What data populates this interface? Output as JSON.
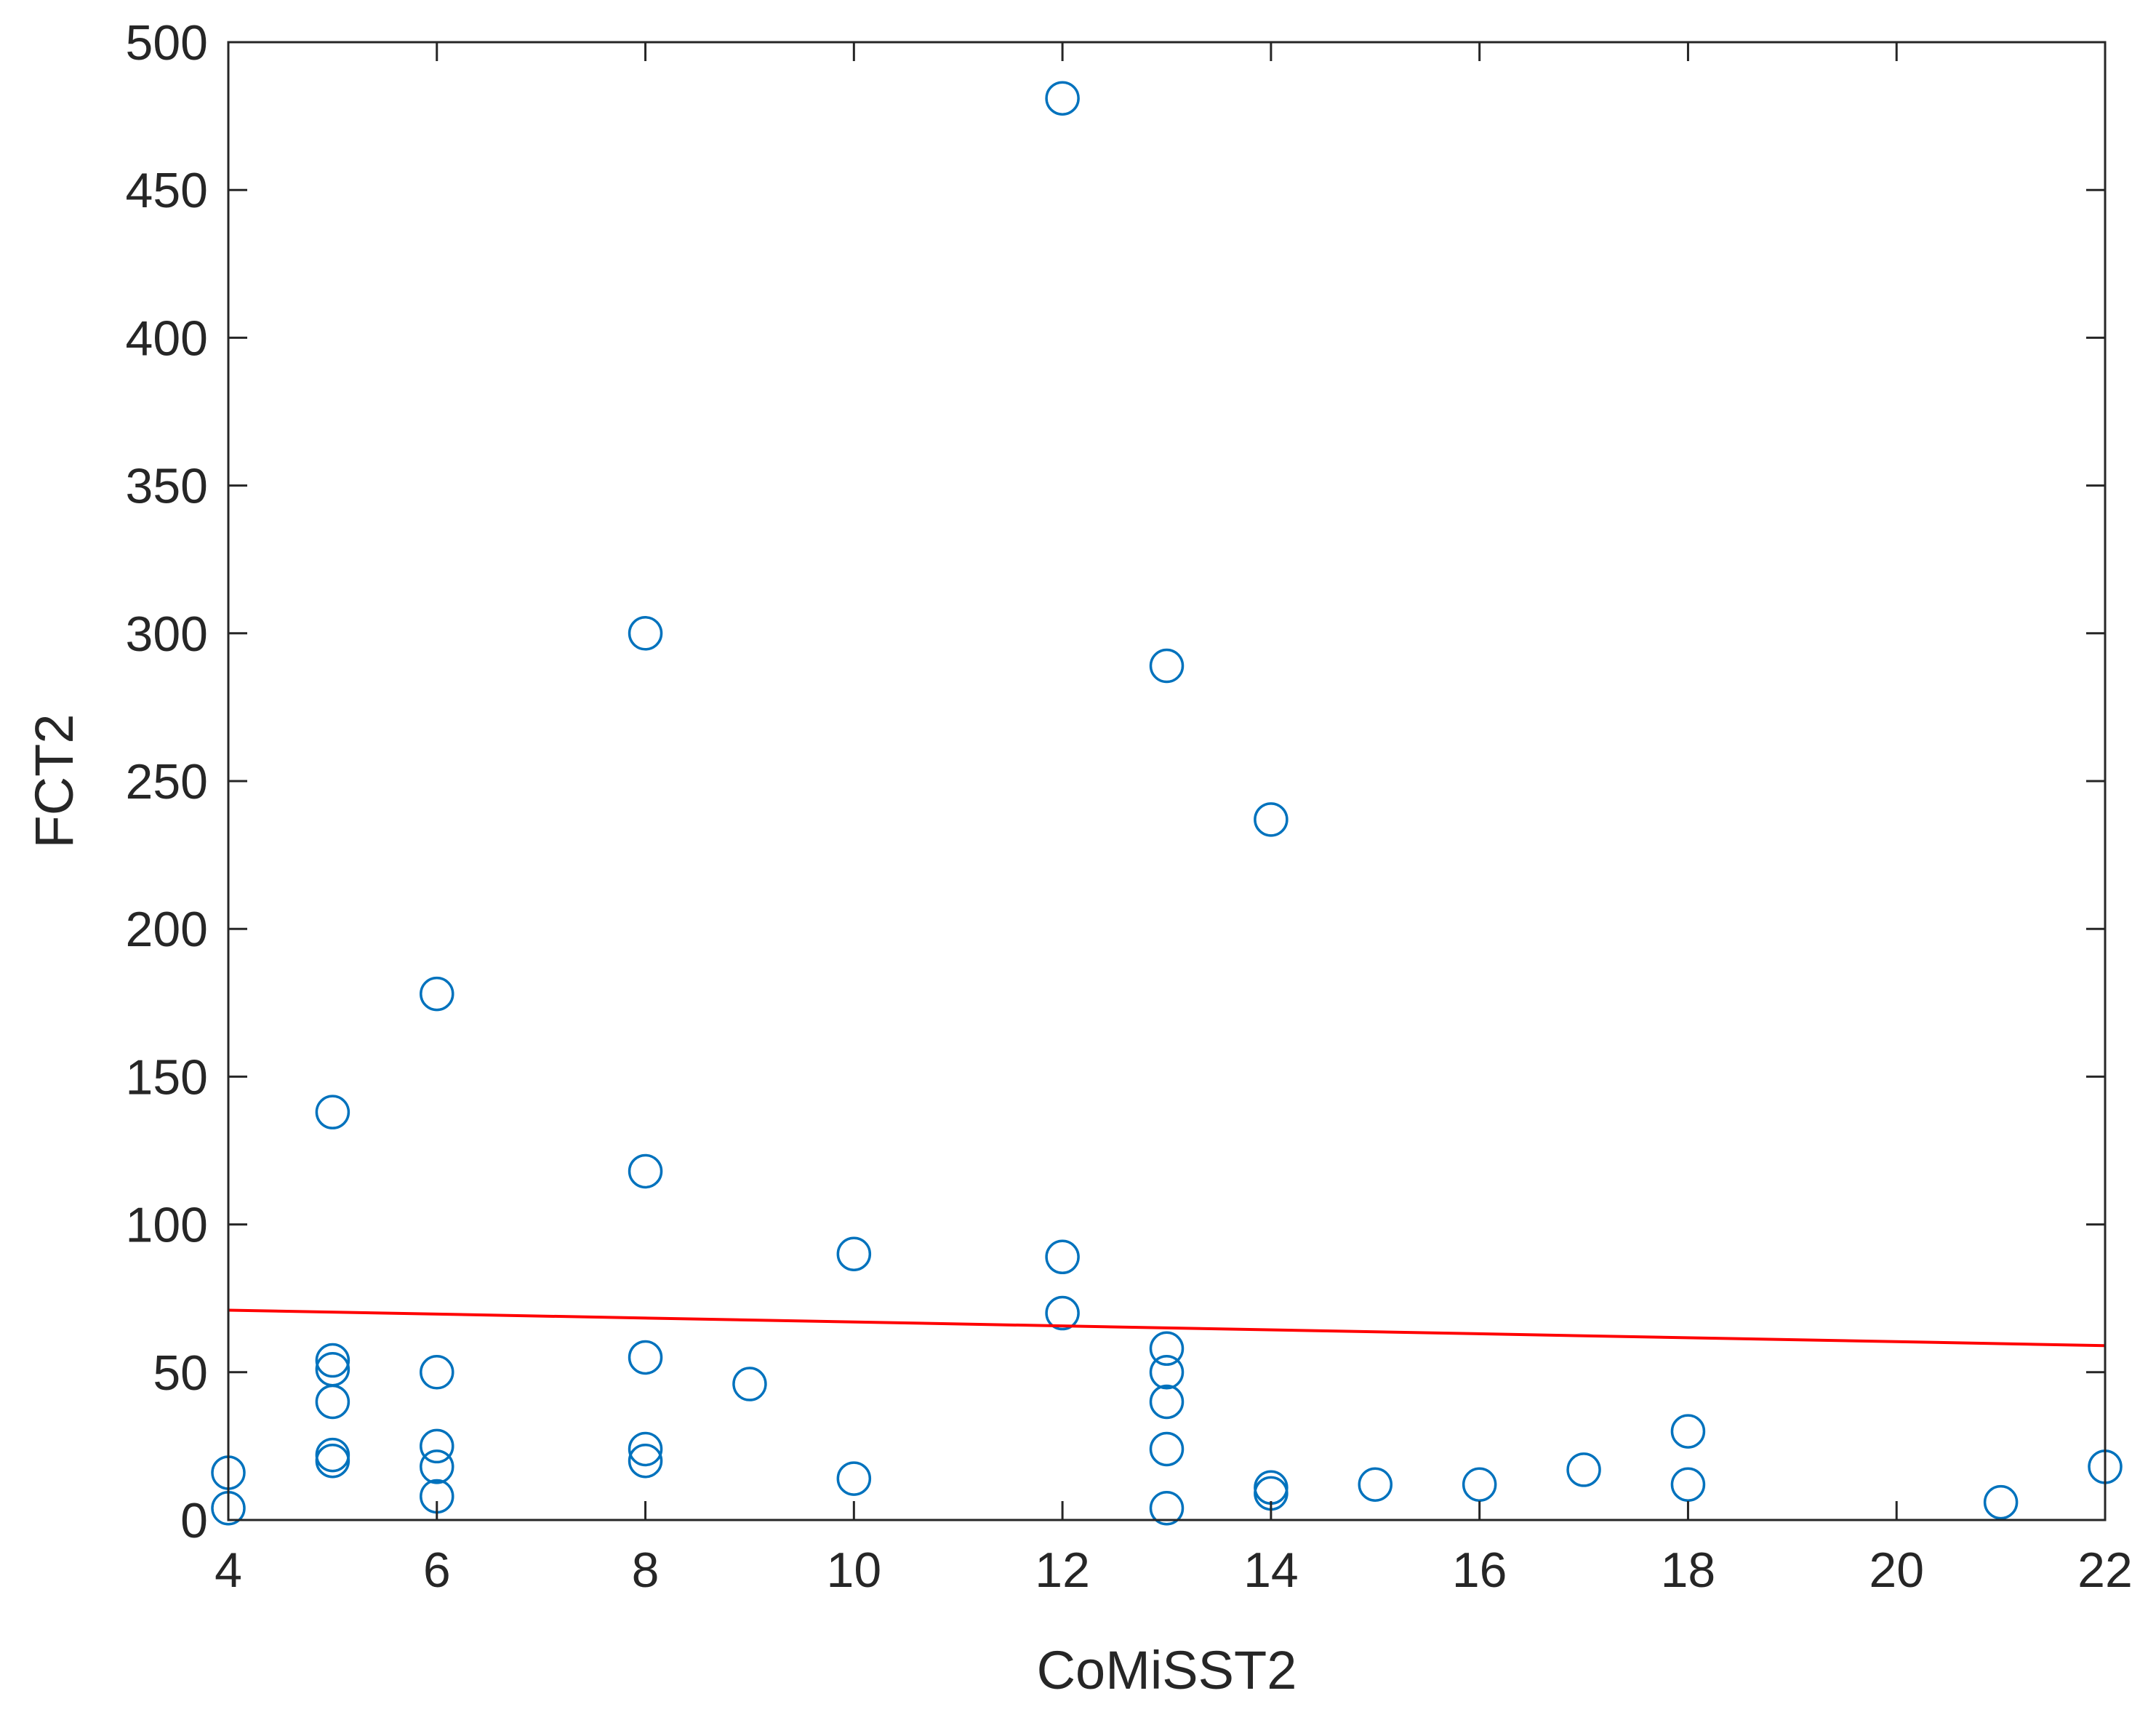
{
  "chart_data": {
    "type": "scatter",
    "title": "",
    "xlabel": "CoMiSST2",
    "ylabel": "FCT2",
    "xlim": [
      4,
      22
    ],
    "ylim": [
      0,
      500
    ],
    "xticks": [
      4,
      6,
      8,
      10,
      12,
      14,
      16,
      18,
      20,
      22
    ],
    "yticks": [
      0,
      50,
      100,
      150,
      200,
      250,
      300,
      350,
      400,
      450,
      500
    ],
    "grid": false,
    "legend": "none",
    "marker_color": "#0072BD",
    "trend_color": "#FF0000",
    "series": [
      {
        "points": [
          {
            "x": 4,
            "y": 16
          },
          {
            "x": 4,
            "y": 4
          },
          {
            "x": 5,
            "y": 138
          },
          {
            "x": 5,
            "y": 54
          },
          {
            "x": 5,
            "y": 51
          },
          {
            "x": 5,
            "y": 40
          },
          {
            "x": 5,
            "y": 22
          },
          {
            "x": 5,
            "y": 20
          },
          {
            "x": 6,
            "y": 178
          },
          {
            "x": 6,
            "y": 50
          },
          {
            "x": 6,
            "y": 25
          },
          {
            "x": 6,
            "y": 18
          },
          {
            "x": 6,
            "y": 8
          },
          {
            "x": 8,
            "y": 300
          },
          {
            "x": 8,
            "y": 118
          },
          {
            "x": 8,
            "y": 55
          },
          {
            "x": 8,
            "y": 24
          },
          {
            "x": 8,
            "y": 20
          },
          {
            "x": 9,
            "y": 46
          },
          {
            "x": 10,
            "y": 90
          },
          {
            "x": 10,
            "y": 14
          },
          {
            "x": 12,
            "y": 481
          },
          {
            "x": 12,
            "y": 89
          },
          {
            "x": 12,
            "y": 70
          },
          {
            "x": 13,
            "y": 289
          },
          {
            "x": 13,
            "y": 58
          },
          {
            "x": 13,
            "y": 50
          },
          {
            "x": 13,
            "y": 40
          },
          {
            "x": 13,
            "y": 24
          },
          {
            "x": 13,
            "y": 4
          },
          {
            "x": 14,
            "y": 237
          },
          {
            "x": 14,
            "y": 11
          },
          {
            "x": 14,
            "y": 9
          },
          {
            "x": 15,
            "y": 12
          },
          {
            "x": 16,
            "y": 12
          },
          {
            "x": 17,
            "y": 17
          },
          {
            "x": 18,
            "y": 30
          },
          {
            "x": 18,
            "y": 12
          },
          {
            "x": 21,
            "y": 6
          },
          {
            "x": 22,
            "y": 18
          }
        ]
      }
    ],
    "trend_line": {
      "x": [
        4,
        22
      ],
      "y": [
        71,
        59
      ]
    }
  }
}
